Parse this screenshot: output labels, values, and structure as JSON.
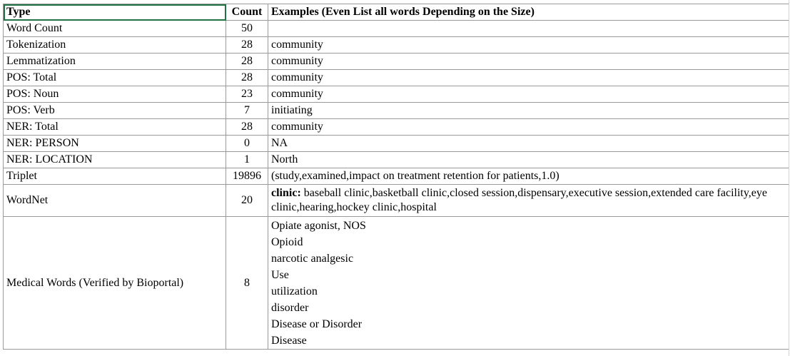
{
  "header": {
    "type": "Type",
    "count": "Count",
    "examples": "Examples (Even List all words Depending on the Size)"
  },
  "rows": [
    {
      "type": "Word Count",
      "count": "50",
      "example": ""
    },
    {
      "type": "Tokenization",
      "count": "28",
      "example": "community"
    },
    {
      "type": "Lemmatization",
      "count": "28",
      "example": "community"
    },
    {
      "type": "POS: Total",
      "count": "28",
      "example": "community"
    },
    {
      "type": "POS: Noun",
      "count": "23",
      "example": "community"
    },
    {
      "type": "POS: Verb",
      "count": "7",
      "example": "initiating"
    },
    {
      "type": "NER: Total",
      "count": "28",
      "example": "community"
    },
    {
      "type": "NER: PERSON",
      "count": "0",
      "example": "NA"
    },
    {
      "type": "NER: LOCATION",
      "count": "1",
      "example": "North"
    },
    {
      "type": "Triplet",
      "count": "19896",
      "example": "(study,examined,impact on treatment retention for patients,1.0)"
    }
  ],
  "wordnet": {
    "type": "WordNet",
    "count": "20",
    "word": "clinic:",
    "text": "baseball clinic,basketball clinic,closed session,dispensary,executive session,extended care facility,eye clinic,hearing,hockey clinic,hospital"
  },
  "medical": {
    "type": "Medical Words (Verified by Bioportal)",
    "count": "8",
    "items": [
      "Opiate agonist, NOS",
      "Opioid",
      "narcotic analgesic",
      "Use",
      "utilization",
      "disorder",
      "Disease or Disorder",
      "Disease"
    ]
  },
  "colors": {
    "selection": "#217346",
    "gridline": "#9a9a9a"
  }
}
